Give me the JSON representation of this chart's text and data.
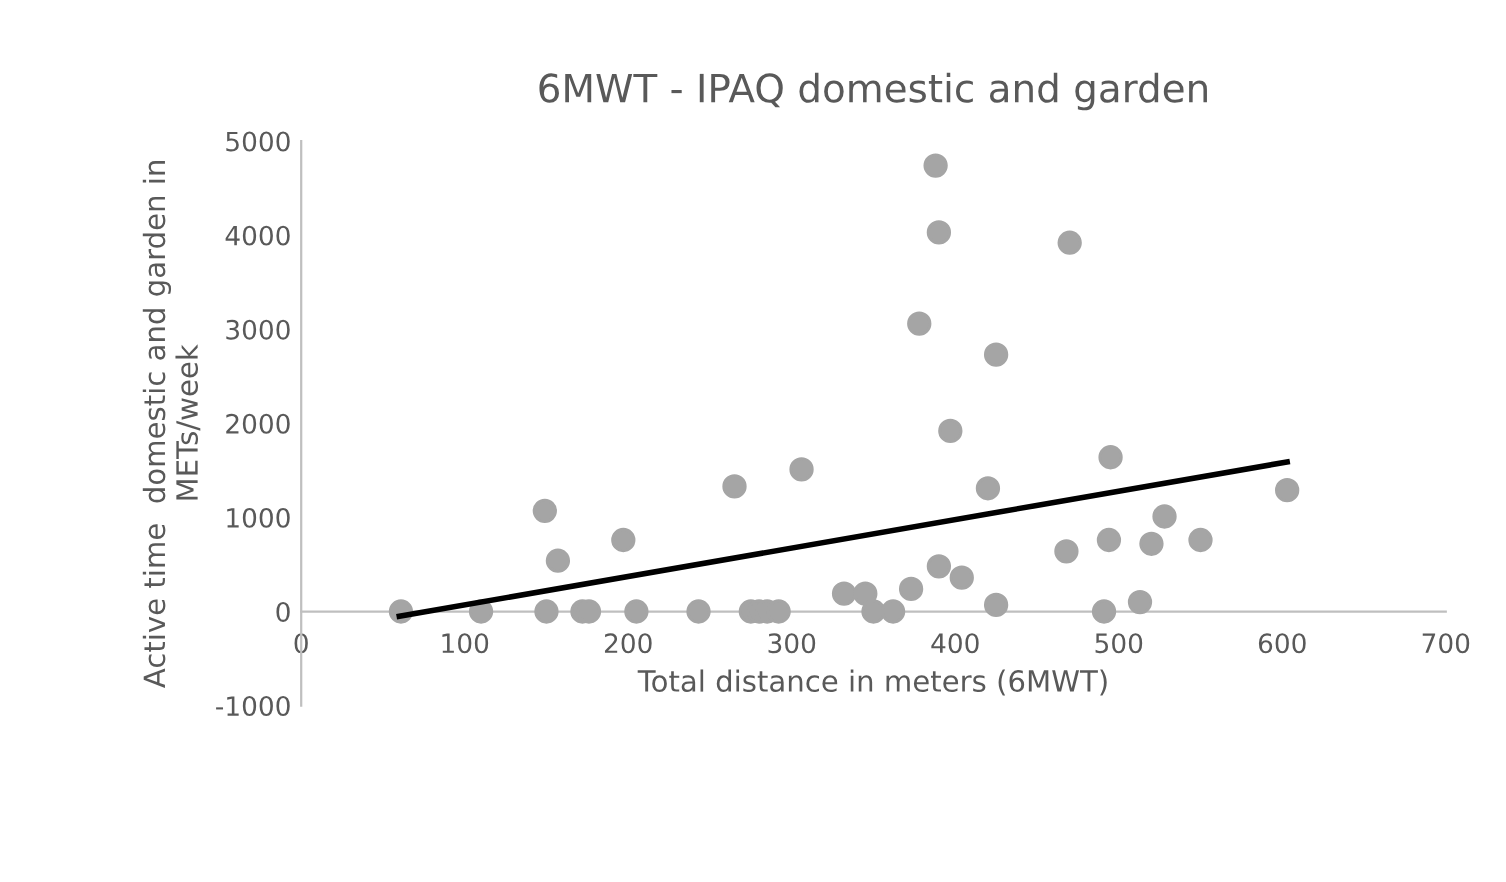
{
  "chart_data": {
    "type": "scatter",
    "title": "6MWT - IPAQ domestic and garden",
    "xlabel": "Total distance in meters (6MWT)",
    "ylabel": "Active time  domestic and garden in\nMETs/week",
    "xlim": [
      0,
      700
    ],
    "ylim": [
      -1000,
      5000
    ],
    "xticks": [
      0,
      100,
      200,
      300,
      400,
      500,
      600,
      700
    ],
    "yticks": [
      -1000,
      0,
      1000,
      2000,
      3000,
      4000,
      5000
    ],
    "grid": false,
    "legend": false,
    "series": [
      {
        "marker": "circle",
        "color": "#a5a5a5",
        "x": [
          61,
          110,
          149,
          150,
          157,
          172,
          176,
          197,
          205,
          243,
          265,
          275,
          280,
          285,
          292,
          306,
          332,
          345,
          350,
          362,
          373,
          378,
          388,
          390,
          390,
          397,
          404,
          420,
          425,
          425,
          468,
          470,
          494,
          495,
          491,
          513,
          520,
          528,
          550,
          603
        ],
        "values": [
          0,
          0,
          1070,
          0,
          540,
          0,
          0,
          760,
          0,
          0,
          1330,
          0,
          0,
          0,
          0,
          1510,
          190,
          190,
          0,
          0,
          240,
          3060,
          4740,
          4030,
          480,
          1920,
          360,
          1310,
          70,
          2730,
          640,
          3920,
          760,
          1640,
          0,
          100,
          720,
          1010,
          760,
          1290
        ]
      },
      {
        "type": "line",
        "marker": "none",
        "color": "#000000",
        "x": [
          60,
          603
        ],
        "values": [
          -50,
          1590
        ]
      }
    ]
  }
}
